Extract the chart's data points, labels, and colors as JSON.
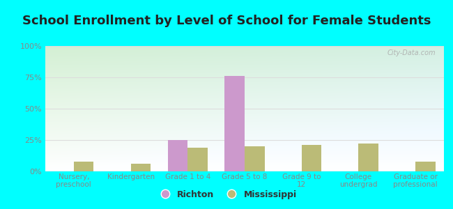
{
  "title": "School Enrollment by Level of School for Female Students",
  "categories": [
    "Nursery,\npreschool",
    "Kindergarten",
    "Grade 1 to 4",
    "Grade 5 to 8",
    "Grade 9 to\n12",
    "College\nundergrad",
    "Graduate or\nprofessional"
  ],
  "richton": [
    0,
    0,
    25,
    76,
    0,
    0,
    0
  ],
  "mississippi": [
    8,
    6,
    19,
    20,
    21,
    22,
    8
  ],
  "richton_color": "#cc99cc",
  "mississippi_color": "#bbbb77",
  "bar_width": 0.35,
  "ylim": [
    0,
    100
  ],
  "yticks": [
    0,
    25,
    50,
    75,
    100
  ],
  "yticklabels": [
    "0%",
    "25%",
    "50%",
    "75%",
    "100%"
  ],
  "background_outer": "#00ffff",
  "grid_color": "#dddddd",
  "tick_color": "#888888",
  "title_fontsize": 13,
  "title_color": "#222222",
  "legend_labels": [
    "Richton",
    "Mississippi"
  ],
  "watermark": "City-Data.com"
}
